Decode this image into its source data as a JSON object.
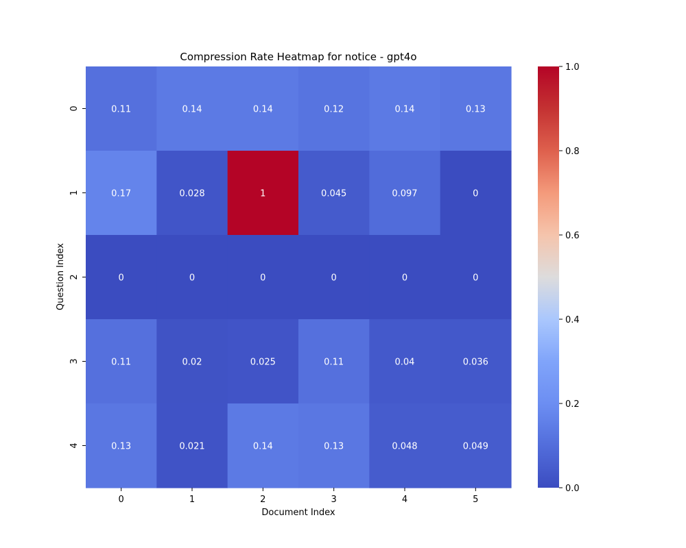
{
  "chart_data": {
    "type": "heatmap",
    "title": "Compression Rate Heatmap for notice - gpt4o",
    "xlabel": "Document Index",
    "ylabel": "Question Index",
    "x_categories": [
      "0",
      "1",
      "2",
      "3",
      "4",
      "5"
    ],
    "y_categories": [
      "0",
      "1",
      "2",
      "3",
      "4"
    ],
    "values": [
      [
        0.11,
        0.14,
        0.14,
        0.12,
        0.14,
        0.13
      ],
      [
        0.17,
        0.028,
        1,
        0.045,
        0.097,
        0
      ],
      [
        0,
        0,
        0,
        0,
        0,
        0
      ],
      [
        0.11,
        0.02,
        0.025,
        0.11,
        0.04,
        0.036
      ],
      [
        0.13,
        0.021,
        0.14,
        0.13,
        0.048,
        0.049
      ]
    ],
    "annotations": [
      [
        "0.11",
        "0.14",
        "0.14",
        "0.12",
        "0.14",
        "0.13"
      ],
      [
        "0.17",
        "0.028",
        "1",
        "0.045",
        "0.097",
        "0"
      ],
      [
        "0",
        "0",
        "0",
        "0",
        "0",
        "0"
      ],
      [
        "0.11",
        "0.02",
        "0.025",
        "0.11",
        "0.04",
        "0.036"
      ],
      [
        "0.13",
        "0.021",
        "0.14",
        "0.13",
        "0.048",
        "0.049"
      ]
    ],
    "colormap": "coolwarm",
    "vmin": 0,
    "vmax": 1,
    "colorbar_ticks": [
      "0.0",
      "0.2",
      "0.4",
      "0.6",
      "0.8",
      "1.0"
    ],
    "colorbar_tick_values": [
      0,
      0.2,
      0.4,
      0.6,
      0.8,
      1.0
    ],
    "grid": false,
    "annotation_color": "#ffffff",
    "text_color": "#000000"
  }
}
